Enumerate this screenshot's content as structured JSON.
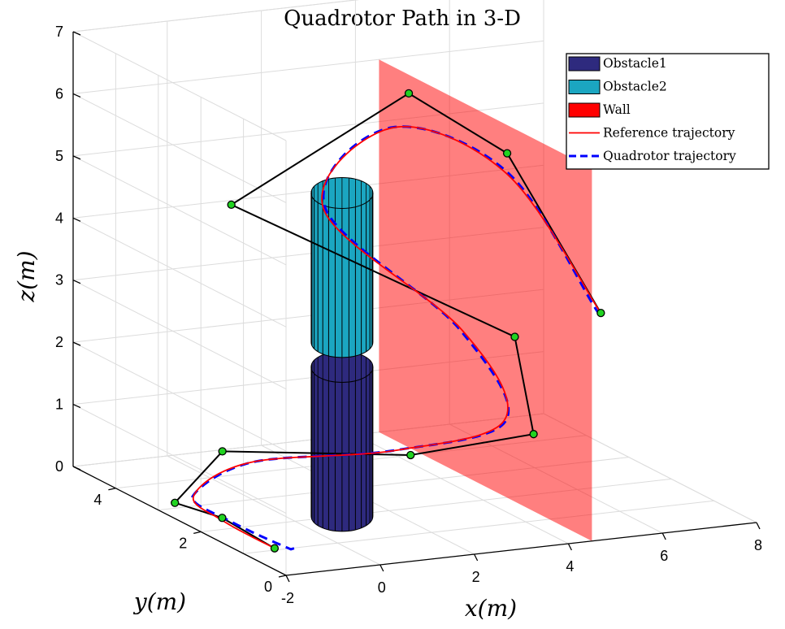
{
  "chart_data": {
    "type": "3d-line",
    "title": "Quadrotor Path in 3-D",
    "xlabel": "x(m)",
    "ylabel": "y(m)",
    "zlabel": "z(m)",
    "xlim": [
      -2,
      8
    ],
    "ylim": [
      0,
      5
    ],
    "zlim": [
      0,
      7
    ],
    "x_ticks": [
      "-2",
      "0",
      "2",
      "4",
      "6",
      "8"
    ],
    "y_ticks": [
      "0",
      "2",
      "4"
    ],
    "z_ticks": [
      "0",
      "1",
      "2",
      "3",
      "4",
      "5",
      "6",
      "7"
    ],
    "grid": true,
    "legend_position": "top-right",
    "legend": [
      {
        "label": "Obstacle1",
        "kind": "patch",
        "color": "#2e2a7e"
      },
      {
        "label": "Obstacle2",
        "kind": "patch",
        "color": "#1ba6c1"
      },
      {
        "label": "Wall",
        "kind": "patch",
        "color": "#ff0000"
      },
      {
        "label": "Reference trajectory",
        "kind": "line",
        "color": "#ff0000"
      },
      {
        "label": "Quadrotor trajectory",
        "kind": "dashed",
        "color": "#0000ff"
      }
    ],
    "obstacles": [
      {
        "name": "Obstacle1",
        "center": [
          1.0,
          2.0
        ],
        "radius": 0.6,
        "z": [
          0,
          2.4
        ],
        "color": "#2e2a7e"
      },
      {
        "name": "Obstacle2",
        "center": [
          1.0,
          2.0
        ],
        "radius": 0.6,
        "z": [
          2.8,
          5.2
        ],
        "color": "#1ba6c1"
      }
    ],
    "wall": {
      "name": "Wall",
      "x": 4.5,
      "y": [
        0,
        5
      ],
      "z": [
        0,
        6
      ],
      "color": "#ff0000"
    },
    "waypoints": [
      [
        -1.7,
        0.6,
        0.2
      ],
      [
        -2.0,
        1.5,
        0.4
      ],
      [
        -2.1,
        2.5,
        0.3
      ],
      [
        -1.0,
        2.6,
        1.0
      ],
      [
        3.0,
        2.6,
        0.6
      ],
      [
        4.8,
        1.7,
        1.1
      ],
      [
        4.4,
        1.7,
        2.7
      ],
      [
        1.0,
        4.6,
        4.1
      ],
      [
        4.5,
        4.3,
        5.7
      ],
      [
        6.5,
        4.2,
        4.6
      ],
      [
        6.5,
        2.0,
        2.8
      ]
    ]
  }
}
